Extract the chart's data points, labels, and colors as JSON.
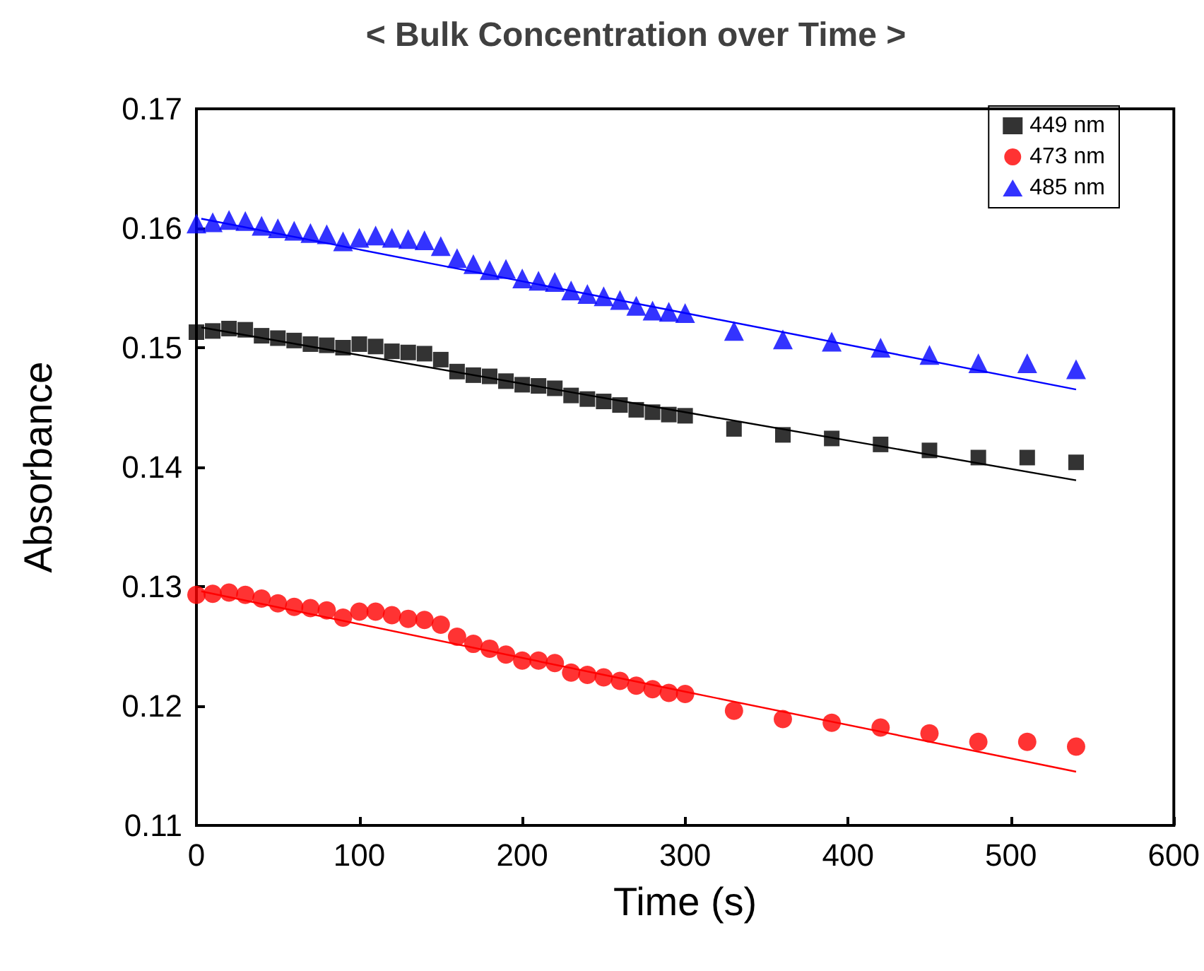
{
  "chart_data": {
    "type": "scatter",
    "title": "< Bulk Concentration over Time >",
    "xlabel": "Time (s)",
    "ylabel": "Absorbance",
    "xlim": [
      0,
      600
    ],
    "xticks": [
      0,
      100,
      200,
      300,
      400,
      500,
      600
    ],
    "ylim": [
      0.11,
      0.17
    ],
    "yticks": [
      0.11,
      0.12,
      0.13,
      0.14,
      0.15,
      0.16,
      0.17
    ],
    "grid": false,
    "legend": "top right",
    "x": [
      0,
      10,
      20,
      30,
      40,
      50,
      60,
      70,
      80,
      90,
      100,
      110,
      120,
      130,
      140,
      150,
      160,
      170,
      180,
      190,
      200,
      210,
      220,
      230,
      240,
      250,
      260,
      270,
      280,
      290,
      300,
      330,
      360,
      390,
      420,
      450,
      480,
      510,
      540
    ],
    "series": [
      {
        "name": "449 nm",
        "color": "#000000",
        "marker": "square",
        "values": [
          0.1513,
          0.1514,
          0.1516,
          0.1515,
          0.151,
          0.1508,
          0.1506,
          0.1503,
          0.1502,
          0.15,
          0.1503,
          0.1501,
          0.1497,
          0.1496,
          0.1495,
          0.149,
          0.148,
          0.1477,
          0.1476,
          0.1472,
          0.1469,
          0.1468,
          0.1466,
          0.146,
          0.1457,
          0.1455,
          0.1452,
          0.1448,
          0.1446,
          0.1444,
          0.1443,
          0.1432,
          0.1427,
          0.1424,
          0.1419,
          0.1414,
          0.1408,
          0.1408,
          0.1404
        ]
      },
      {
        "name": "473 nm",
        "color": "#ff0000",
        "marker": "circle",
        "values": [
          0.1293,
          0.1294,
          0.1295,
          0.1293,
          0.129,
          0.1286,
          0.1283,
          0.1282,
          0.128,
          0.1274,
          0.1279,
          0.1279,
          0.1276,
          0.1273,
          0.1272,
          0.1268,
          0.1258,
          0.1252,
          0.1248,
          0.1243,
          0.1238,
          0.1238,
          0.1236,
          0.1228,
          0.1226,
          0.1224,
          0.1221,
          0.1217,
          0.1214,
          0.1211,
          0.121,
          0.1196,
          0.1189,
          0.1186,
          0.1182,
          0.1177,
          0.117,
          0.117,
          0.1166
        ]
      },
      {
        "name": "485 nm",
        "color": "#0000ff",
        "marker": "triangle",
        "values": [
          0.1604,
          0.1605,
          0.1607,
          0.1606,
          0.1602,
          0.16,
          0.1598,
          0.1596,
          0.1595,
          0.1589,
          0.1592,
          0.1594,
          0.1592,
          0.1591,
          0.159,
          0.1585,
          0.1575,
          0.157,
          0.1565,
          0.1566,
          0.1558,
          0.1556,
          0.1555,
          0.1548,
          0.1545,
          0.1543,
          0.154,
          0.1535,
          0.1531,
          0.153,
          0.1529,
          0.1514,
          0.1507,
          0.1505,
          0.15,
          0.1494,
          0.1487,
          0.1487,
          0.1482
        ]
      },
      {
        "type": "line",
        "color": "#000000",
        "marker": "none",
        "x": [
          3,
          300,
          540
        ],
        "values": [
          0.1517,
          0.1446,
          0.1389
        ]
      },
      {
        "type": "line",
        "color": "#ff0000",
        "marker": "none",
        "x": [
          3,
          300,
          540
        ],
        "values": [
          0.1296,
          0.1212,
          0.1145
        ]
      },
      {
        "type": "line",
        "color": "#0000ff",
        "marker": "none",
        "x": [
          3,
          300,
          540
        ],
        "values": [
          0.1608,
          0.1529,
          0.1465
        ]
      }
    ]
  }
}
